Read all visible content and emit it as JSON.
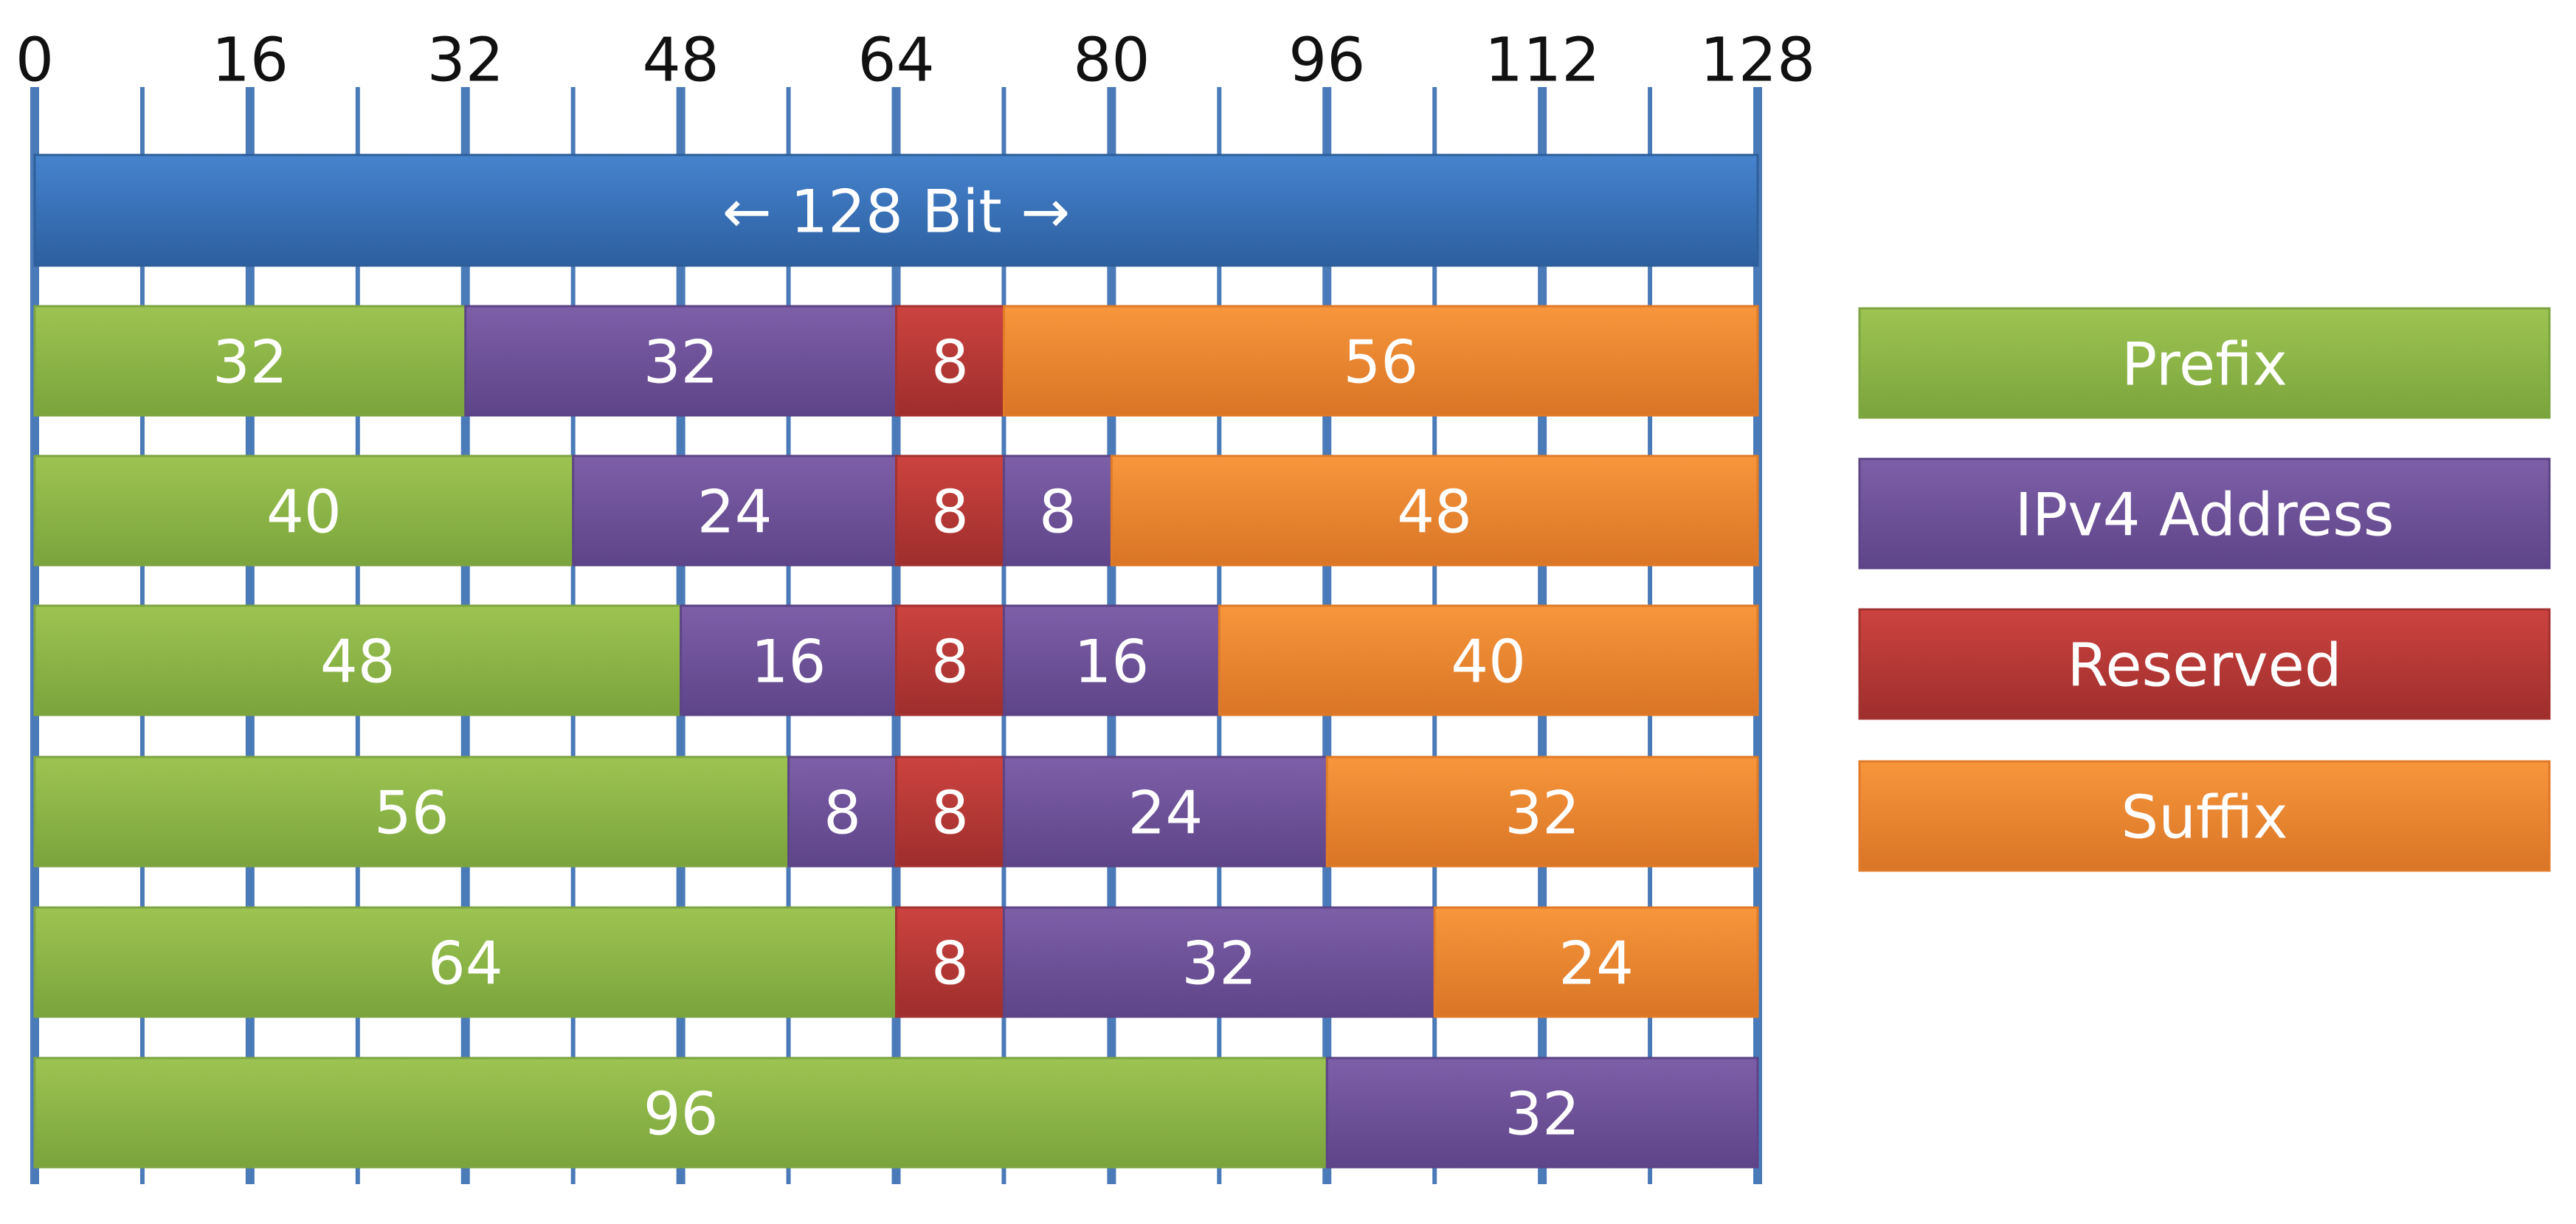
{
  "axis": {
    "min": 0,
    "max": 128,
    "major_ticks": [
      0,
      16,
      32,
      48,
      64,
      80,
      96,
      112,
      128
    ],
    "major_labels": [
      "0",
      "16",
      "32",
      "48",
      "64",
      "80",
      "96",
      "112",
      "128"
    ],
    "minor_step": 8
  },
  "header_bar": {
    "label": "← 128 Bit →",
    "color": "#3a74bf"
  },
  "categories": {
    "prefix": {
      "label": "Prefix",
      "color": "#93bb4a"
    },
    "ipv4": {
      "label": "IPv4 Address",
      "color": "#70549a"
    },
    "reserved": {
      "label": "Reserved",
      "color": "#bf3a38"
    },
    "suffix": {
      "label": "Suffix",
      "color": "#f08a30"
    }
  },
  "legend": [
    {
      "key": "prefix",
      "label": "Prefix"
    },
    {
      "key": "ipv4",
      "label": "IPv4 Address"
    },
    {
      "key": "reserved",
      "label": "Reserved"
    },
    {
      "key": "suffix",
      "label": "Suffix"
    }
  ],
  "rows": [
    [
      {
        "type": "prefix",
        "bits": 32,
        "label": "32"
      },
      {
        "type": "ipv4",
        "bits": 32,
        "label": "32"
      },
      {
        "type": "reserved",
        "bits": 8,
        "label": "8"
      },
      {
        "type": "suffix",
        "bits": 56,
        "label": "56"
      }
    ],
    [
      {
        "type": "prefix",
        "bits": 40,
        "label": "40"
      },
      {
        "type": "ipv4",
        "bits": 24,
        "label": "24"
      },
      {
        "type": "reserved",
        "bits": 8,
        "label": "8"
      },
      {
        "type": "ipv4",
        "bits": 8,
        "label": "8"
      },
      {
        "type": "suffix",
        "bits": 48,
        "label": "48"
      }
    ],
    [
      {
        "type": "prefix",
        "bits": 48,
        "label": "48"
      },
      {
        "type": "ipv4",
        "bits": 16,
        "label": "16"
      },
      {
        "type": "reserved",
        "bits": 8,
        "label": "8"
      },
      {
        "type": "ipv4",
        "bits": 16,
        "label": "16"
      },
      {
        "type": "suffix",
        "bits": 40,
        "label": "40"
      }
    ],
    [
      {
        "type": "prefix",
        "bits": 56,
        "label": "56"
      },
      {
        "type": "ipv4",
        "bits": 8,
        "label": "8"
      },
      {
        "type": "reserved",
        "bits": 8,
        "label": "8"
      },
      {
        "type": "ipv4",
        "bits": 24,
        "label": "24"
      },
      {
        "type": "suffix",
        "bits": 32,
        "label": "32"
      }
    ],
    [
      {
        "type": "prefix",
        "bits": 64,
        "label": "64"
      },
      {
        "type": "reserved",
        "bits": 8,
        "label": "8"
      },
      {
        "type": "ipv4",
        "bits": 32,
        "label": "32"
      },
      {
        "type": "suffix",
        "bits": 24,
        "label": "24"
      }
    ],
    [
      {
        "type": "prefix",
        "bits": 96,
        "label": "96"
      },
      {
        "type": "ipv4",
        "bits": 32,
        "label": "32"
      }
    ]
  ]
}
